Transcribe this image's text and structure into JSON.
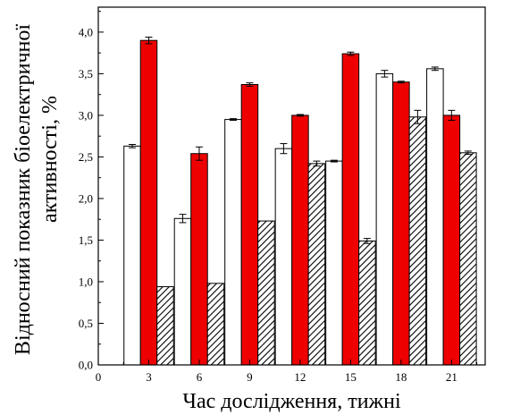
{
  "chart_data": {
    "type": "bar",
    "xlabel": "Час дослідження, тижні",
    "ylabel_line1": "Відносний показник біоелектричної",
    "ylabel_line2": "активності, %",
    "x_ticks": [
      "0",
      "3",
      "6",
      "9",
      "12",
      "15",
      "18",
      "21"
    ],
    "y_ticks": [
      "0,0",
      "0,5",
      "1,0",
      "1,5",
      "2,0",
      "2,5",
      "3,0",
      "3,5",
      "4,0"
    ],
    "xlim": [
      0,
      23
    ],
    "ylim": [
      0,
      4.3
    ],
    "x": [
      3,
      6,
      9,
      12,
      15,
      18,
      21
    ],
    "series": [
      {
        "style": "white",
        "fill": "#ffffff",
        "values": [
          2.63,
          1.76,
          2.95,
          2.6,
          2.45,
          3.5,
          3.56
        ],
        "errors": [
          0.02,
          0.05,
          0.01,
          0.06,
          0.01,
          0.04,
          0.02
        ]
      },
      {
        "style": "red",
        "fill": "#ee0000",
        "values": [
          3.9,
          2.54,
          3.37,
          3.0,
          3.74,
          3.4,
          3.0
        ],
        "errors": [
          0.04,
          0.08,
          0.02,
          0.01,
          0.02,
          0.01,
          0.06
        ]
      },
      {
        "style": "hatched",
        "fill": "hatch",
        "values": [
          0.94,
          0.98,
          1.73,
          2.42,
          1.49,
          2.98,
          2.55
        ],
        "errors": [
          0.0,
          0.0,
          0.0,
          0.03,
          0.03,
          0.08,
          0.02
        ]
      }
    ],
    "grid": false,
    "legend": "none"
  }
}
